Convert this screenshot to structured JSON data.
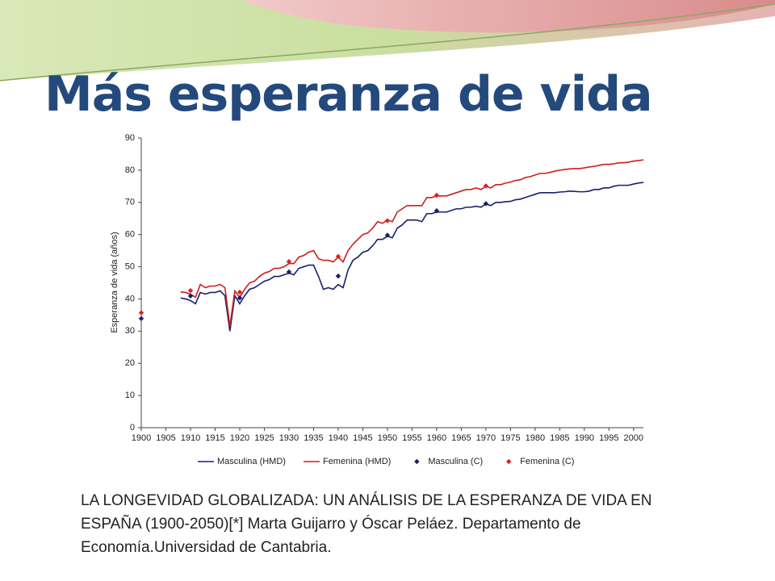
{
  "title": "Más esperanza de vida",
  "caption": "LA LONGEVIDAD GLOBALIZADA: UN ANÁLISIS DE LA ESPERANZA DE VIDA EN ESPAÑA (1900-2050)[*] Marta Guijarro y Óscar Peláez. Departamento de Economía.Universidad de Cantabria.",
  "chart_data": {
    "type": "line",
    "ylabel": "Esperanza de vida (años)",
    "xlim": [
      1900,
      2002
    ],
    "ylim": [
      0,
      90
    ],
    "xticks": [
      1900,
      1905,
      1910,
      1915,
      1920,
      1925,
      1930,
      1935,
      1940,
      1945,
      1950,
      1955,
      1960,
      1965,
      1970,
      1975,
      1980,
      1985,
      1990,
      1995,
      2000
    ],
    "yticks": [
      0,
      10,
      20,
      30,
      40,
      50,
      60,
      70,
      80,
      90
    ],
    "legend": "bottom",
    "series": [
      {
        "name": "Masculina (HMD)",
        "type": "line",
        "color": "#1a1f6b",
        "x": [
          1908,
          1909,
          1910,
          1911,
          1912,
          1913,
          1914,
          1915,
          1916,
          1917,
          1918,
          1919,
          1920,
          1921,
          1922,
          1923,
          1924,
          1925,
          1926,
          1927,
          1928,
          1929,
          1930,
          1931,
          1932,
          1933,
          1934,
          1935,
          1936,
          1937,
          1938,
          1939,
          1940,
          1941,
          1942,
          1943,
          1944,
          1945,
          1946,
          1947,
          1948,
          1949,
          1950,
          1951,
          1952,
          1953,
          1954,
          1955,
          1956,
          1957,
          1958,
          1959,
          1960,
          1961,
          1962,
          1963,
          1964,
          1965,
          1966,
          1967,
          1968,
          1969,
          1970,
          1971,
          1972,
          1973,
          1974,
          1975,
          1976,
          1977,
          1978,
          1979,
          1980,
          1981,
          1982,
          1983,
          1984,
          1985,
          1986,
          1987,
          1988,
          1989,
          1990,
          1991,
          1992,
          1993,
          1994,
          1995,
          1996,
          1997,
          1998,
          1999,
          2000,
          2001,
          2002
        ],
        "values": [
          40.3,
          40,
          39.5,
          38.5,
          42,
          41.5,
          42,
          42,
          42.5,
          41,
          30,
          41,
          38.5,
          41,
          43,
          43.5,
          44.5,
          45.5,
          46,
          47,
          47,
          47.5,
          48,
          47.5,
          49.5,
          50,
          50.5,
          50.5,
          47,
          43,
          43.5,
          43,
          44.5,
          43.5,
          49,
          52,
          53,
          54.5,
          55,
          56.5,
          58.5,
          58.5,
          59.5,
          59,
          62,
          63,
          64.5,
          64.5,
          64.5,
          64,
          66.5,
          66.5,
          67,
          67,
          67,
          67.5,
          68,
          68,
          68.5,
          68.5,
          68.8,
          68.5,
          69.5,
          69,
          70,
          70,
          70.2,
          70.3,
          70.8,
          71,
          71.5,
          72,
          72.5,
          73,
          73,
          73,
          73,
          73.2,
          73.3,
          73.5,
          73.4,
          73.3,
          73.3,
          73.5,
          74,
          74,
          74.5,
          74.5,
          75,
          75.3,
          75.3,
          75.3,
          75.7,
          76,
          76.2
        ]
      },
      {
        "name": "Femenina (HMD)",
        "type": "line",
        "color": "#cc1f1f",
        "x": [
          1908,
          1909,
          1910,
          1911,
          1912,
          1913,
          1914,
          1915,
          1916,
          1917,
          1918,
          1919,
          1920,
          1921,
          1922,
          1923,
          1924,
          1925,
          1926,
          1927,
          1928,
          1929,
          1930,
          1931,
          1932,
          1933,
          1934,
          1935,
          1936,
          1937,
          1938,
          1939,
          1940,
          1941,
          1942,
          1943,
          1944,
          1945,
          1946,
          1947,
          1948,
          1949,
          1950,
          1951,
          1952,
          1953,
          1954,
          1955,
          1956,
          1957,
          1958,
          1959,
          1960,
          1961,
          1962,
          1963,
          1964,
          1965,
          1966,
          1967,
          1968,
          1969,
          1970,
          1971,
          1972,
          1973,
          1974,
          1975,
          1976,
          1977,
          1978,
          1979,
          1980,
          1981,
          1982,
          1983,
          1984,
          1985,
          1986,
          1987,
          1988,
          1989,
          1990,
          1991,
          1992,
          1993,
          1994,
          1995,
          1996,
          1997,
          1998,
          1999,
          2000,
          2001,
          2002
        ],
        "values": [
          42.2,
          42,
          41.5,
          40.5,
          44.5,
          43.5,
          44,
          44,
          44.5,
          43.5,
          31.5,
          42.5,
          40.5,
          43,
          45,
          45.5,
          47,
          48,
          48.5,
          49.5,
          49.5,
          50,
          51,
          51,
          53,
          53.5,
          54.5,
          55,
          52.5,
          52,
          52,
          51.5,
          53,
          51.5,
          55,
          57,
          58.5,
          60,
          60.5,
          62,
          64,
          63.5,
          64.5,
          64,
          67,
          68,
          69,
          69,
          69,
          69,
          71.5,
          71.5,
          72,
          72,
          72,
          72.5,
          73,
          73.5,
          74,
          74,
          74.5,
          74,
          75,
          74.5,
          75.5,
          75.5,
          76,
          76.3,
          76.8,
          77,
          77.7,
          78,
          78.5,
          79,
          79,
          79.3,
          79.7,
          80,
          80.2,
          80.4,
          80.5,
          80.5,
          80.7,
          81,
          81.2,
          81.5,
          81.8,
          81.8,
          82,
          82.3,
          82.3,
          82.5,
          82.8,
          83,
          83.2
        ]
      },
      {
        "name": "Masculina (C)",
        "type": "scatter",
        "color": "#1a1f6b",
        "x": [
          1900,
          1910,
          1920,
          1930,
          1940,
          1950,
          1960,
          1970
        ],
        "values": [
          33.9,
          40.9,
          40.3,
          48.4,
          47.1,
          59.8,
          67.4,
          69.6
        ]
      },
      {
        "name": "Femenina (C)",
        "type": "scatter",
        "color": "#e02020",
        "x": [
          1900,
          1910,
          1920,
          1930,
          1940,
          1950,
          1960,
          1970
        ],
        "values": [
          35.7,
          42.6,
          42.1,
          51.6,
          53.2,
          64.3,
          72.2,
          75.1
        ]
      }
    ]
  }
}
